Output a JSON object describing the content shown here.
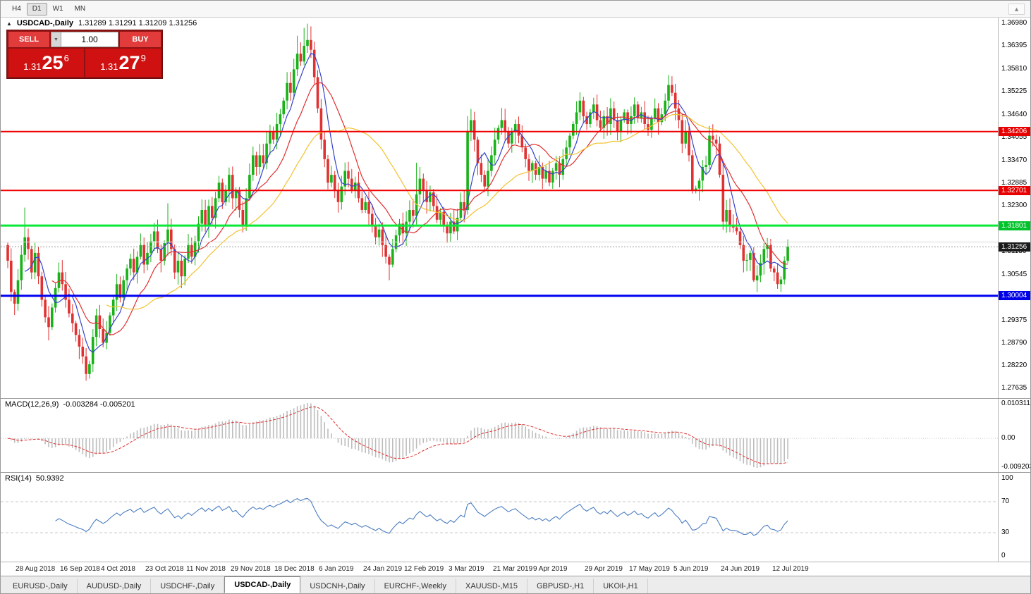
{
  "toolbar": {
    "timeframes": [
      "H4",
      "D1",
      "W1",
      "MN"
    ],
    "active_timeframe": "D1"
  },
  "icons": {
    "panel_toggle": "▲",
    "volume_dropdown": "▼",
    "toolbar_overflow": "▲"
  },
  "chart_header": {
    "symbol": "USDCAD-,Daily",
    "ohlc": "1.31289 1.31291 1.31209 1.31256"
  },
  "trade_panel": {
    "sell_label": "SELL",
    "buy_label": "BUY",
    "volume": "1.00",
    "sell_price": {
      "big_part": "1.31",
      "pips": "25",
      "point": "6"
    },
    "buy_price": {
      "big_part": "1.31",
      "pips": "27",
      "point": "9"
    }
  },
  "price_axis": {
    "labels": [
      "1.36980",
      "1.36395",
      "1.35810",
      "1.35225",
      "1.34640",
      "1.34055",
      "1.33470",
      "1.32885",
      "1.32300",
      "1.31715",
      "1.31130",
      "1.30545",
      "1.29960",
      "1.29375",
      "1.28790",
      "1.28220",
      "1.27635"
    ],
    "current_price": 1.31256,
    "tags": [
      {
        "text": "1.34206",
        "price": 1.34206,
        "color": "#e80000"
      },
      {
        "text": "1.32701",
        "price": 1.32701,
        "color": "#e80000"
      },
      {
        "text": "1.31801",
        "price": 1.31801,
        "color": "#00c32a"
      },
      {
        "text": "1.31256",
        "price": 1.31256,
        "color": "#1a1a1a"
      },
      {
        "text": "1.30004",
        "price": 1.30004,
        "color": "#0000e8"
      }
    ]
  },
  "hlines": [
    {
      "price": 1.34206,
      "color": "#f00000",
      "width": 2
    },
    {
      "price": 1.32701,
      "color": "#f00000",
      "width": 2
    },
    {
      "price": 1.31801,
      "color": "#0ae838",
      "width": 3
    },
    {
      "price": 1.30004,
      "color": "#0000f0",
      "width": 3
    },
    {
      "price": 1.3138,
      "color": "#dcdcdc",
      "width": 1
    }
  ],
  "macd": {
    "label": "MACD(12,26,9)",
    "values": "-0.003284 -0.005201",
    "params": {
      "fast": 12,
      "slow": 26,
      "signal": 9
    },
    "axis": [
      "0.010311",
      "0.00",
      "-0.009203"
    ]
  },
  "rsi": {
    "label": "RSI(14)",
    "value": "50.9392",
    "period": 14,
    "levels": [
      70,
      30
    ],
    "axis": [
      "100",
      "70",
      "30",
      "0"
    ]
  },
  "date_axis": [
    {
      "i": 4,
      "label": "28 Aug 2018"
    },
    {
      "i": 17,
      "label": "16 Sep 2018"
    },
    {
      "i": 29,
      "label": "4 Oct 2018"
    },
    {
      "i": 42,
      "label": "23 Oct 2018"
    },
    {
      "i": 54,
      "label": "11 Nov 2018"
    },
    {
      "i": 67,
      "label": "29 Nov 2018"
    },
    {
      "i": 80,
      "label": "18 Dec 2018"
    },
    {
      "i": 93,
      "label": "6 Jan 2019"
    },
    {
      "i": 106,
      "label": "24 Jan 2019"
    },
    {
      "i": 118,
      "label": "12 Feb 2019"
    },
    {
      "i": 131,
      "label": "3 Mar 2019"
    },
    {
      "i": 144,
      "label": "21 Mar 2019"
    },
    {
      "i": 156,
      "label": "9 Apr 2019"
    },
    {
      "i": 171,
      "label": "29 Apr 2019"
    },
    {
      "i": 184,
      "label": "17 May 2019"
    },
    {
      "i": 197,
      "label": "5 Jun 2019"
    },
    {
      "i": 211,
      "label": "24 Jun 2019"
    },
    {
      "i": 226,
      "label": "12 Jul 2019"
    }
  ],
  "tabs": [
    {
      "label": "EURUSD-,Daily",
      "active": false
    },
    {
      "label": "AUDUSD-,Daily",
      "active": false
    },
    {
      "label": "USDCHF-,Daily",
      "active": false
    },
    {
      "label": "USDCAD-,Daily",
      "active": true
    },
    {
      "label": "USDCNH-,Daily",
      "active": false
    },
    {
      "label": "EURCHF-,Weekly",
      "active": false
    },
    {
      "label": "XAUUSD-,M15",
      "active": false
    },
    {
      "label": "GBPUSD-,H1",
      "active": false
    },
    {
      "label": "UKOil-,H1",
      "active": false
    }
  ],
  "colors": {
    "candle_up": "#19b219",
    "candle_down": "#e03232",
    "macd_histogram": "#bdbdbd",
    "macd_signal": "#e03030",
    "rsi_line": "#4b7dc0",
    "grid_dash": "#9a9a9a"
  },
  "chart_data": {
    "type": "candlestick",
    "title": "USDCAD-,Daily",
    "symbol": "USDCAD",
    "timeframe": "Daily",
    "price_range": {
      "min": 1.27635,
      "max": 1.3698
    },
    "last_close": 1.31256,
    "open_first": 1.313,
    "ma": [
      {
        "period": 6,
        "color": "#3342cc"
      },
      {
        "period": 14,
        "color": "#e03030"
      },
      {
        "period": 30,
        "color": "#f2c230"
      }
    ],
    "closes": [
      1.309,
      1.301,
      1.298,
      1.304,
      1.3105,
      1.315,
      1.312,
      1.306,
      1.311,
      1.305,
      1.299,
      1.2945,
      1.292,
      1.297,
      1.302,
      1.306,
      1.303,
      1.299,
      1.2955,
      1.293,
      1.29,
      1.287,
      1.2845,
      1.28,
      1.2825,
      1.2895,
      1.295,
      1.2915,
      1.288,
      1.2905,
      1.295,
      1.299,
      1.303,
      1.2995,
      1.304,
      1.307,
      1.3095,
      1.306,
      1.31,
      1.313,
      1.308,
      1.311,
      1.314,
      1.3165,
      1.312,
      1.309,
      1.3135,
      1.317,
      1.312,
      1.306,
      1.309,
      1.305,
      1.3095,
      1.313,
      1.31,
      1.314,
      1.3185,
      1.322,
      1.318,
      1.323,
      1.32,
      1.325,
      1.329,
      1.324,
      1.327,
      1.331,
      1.325,
      1.327,
      1.322,
      1.318,
      1.325,
      1.331,
      1.336,
      1.333,
      1.336,
      1.334,
      1.339,
      1.342,
      1.34,
      1.344,
      1.3465,
      1.35,
      1.3545,
      1.352,
      1.358,
      1.362,
      1.36,
      1.364,
      1.3655,
      1.363,
      1.356,
      1.348,
      1.34,
      1.335,
      1.329,
      1.331,
      1.327,
      1.324,
      1.328,
      1.332,
      1.33,
      1.327,
      1.329,
      1.325,
      1.322,
      1.324,
      1.321,
      1.318,
      1.315,
      1.317,
      1.313,
      1.31,
      1.308,
      1.312,
      1.3155,
      1.3185,
      1.316,
      1.319,
      1.322,
      1.3205,
      1.326,
      1.33,
      1.327,
      1.324,
      1.3265,
      1.323,
      1.3195,
      1.3215,
      1.318,
      1.316,
      1.319,
      1.3165,
      1.32,
      1.324,
      1.322,
      1.342,
      1.345,
      1.34,
      1.334,
      1.331,
      1.328,
      1.332,
      1.336,
      1.34,
      1.343,
      1.345,
      1.342,
      1.339,
      1.342,
      1.344,
      1.341,
      1.338,
      1.335,
      1.332,
      1.334,
      1.331,
      1.333,
      1.33,
      1.332,
      1.329,
      1.332,
      1.334,
      1.331,
      1.335,
      1.338,
      1.341,
      1.344,
      1.347,
      1.35,
      1.346,
      1.344,
      1.347,
      1.349,
      1.345,
      1.343,
      1.346,
      1.344,
      1.348,
      1.345,
      1.342,
      1.345,
      1.347,
      1.344,
      1.346,
      1.349,
      1.3455,
      1.347,
      1.344,
      1.3425,
      1.3455,
      1.348,
      1.3445,
      1.3465,
      1.35,
      1.354,
      1.352,
      1.348,
      1.345,
      1.339,
      1.342,
      1.336,
      1.327,
      1.3275,
      1.3295,
      1.333,
      1.3335,
      1.341,
      1.34,
      1.339,
      1.331,
      1.319,
      1.322,
      1.318,
      1.3175,
      1.3165,
      1.313,
      1.309,
      1.3092,
      1.311,
      1.304,
      1.3052,
      1.3085,
      1.312,
      1.313,
      1.307,
      1.306,
      1.303,
      1.3042,
      1.309,
      1.3126
    ],
    "wick_overrides": {
      "high": {
        "5": 1.3226,
        "47": 1.3237,
        "85": 1.3666,
        "87": 1.3686,
        "88": 1.3697,
        "89": 1.369,
        "120": 1.3341,
        "135": 1.346,
        "145": 1.3481,
        "168": 1.3521,
        "194": 1.3565,
        "206": 1.3435
      },
      "low": {
        "12": 1.2886,
        "23": 1.2783,
        "24": 1.2788,
        "112": 1.304,
        "201": 1.3262,
        "219": 1.3036,
        "226": 1.3018
      }
    }
  }
}
